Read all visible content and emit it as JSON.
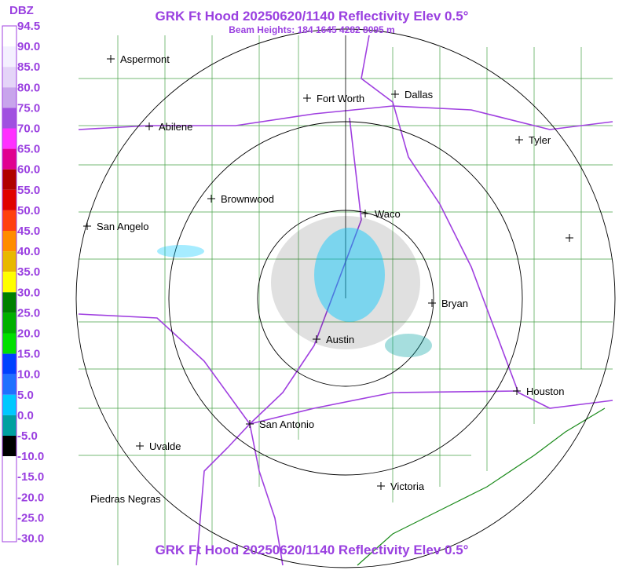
{
  "header": {
    "title": "GRK Ft Hood 20250620/1140 Reflectivity Elev 0.5°",
    "subtitle": "Beam Heights: 184 1645 4282 8095 m",
    "footer": "GRK Ft Hood 20250620/1140 Reflectivity Elev 0.5°"
  },
  "legend": {
    "unit": "DBZ",
    "labels": [
      "94.5",
      "90.0",
      "85.0",
      "80.0",
      "75.0",
      "70.0",
      "65.0",
      "60.0",
      "55.0",
      "50.0",
      "45.0",
      "40.0",
      "35.0",
      "30.0",
      "25.0",
      "20.0",
      "15.0",
      "10.0",
      "5.0",
      "0.0",
      "-5.0",
      "-10.0",
      "-15.0",
      "-20.0",
      "-25.0",
      "-30.0"
    ],
    "colors": [
      "#ffffff",
      "#f4f0ff",
      "#e4d4f8",
      "#c8a4ec",
      "#a050e0",
      "#ff30ff",
      "#e00090",
      "#b00000",
      "#e00000",
      "#ff4010",
      "#ff8c00",
      "#e8b800",
      "#ffff00",
      "#008000",
      "#00b000",
      "#00e000",
      "#0040ff",
      "#2070ff",
      "#00c8ff",
      "#00a0a0",
      "#000000",
      "#ffffff",
      "#ffffff",
      "#ffffff",
      "#ffffff"
    ]
  },
  "cities": [
    {
      "name": "Aspermont"
    },
    {
      "name": "Abilene"
    },
    {
      "name": "Fort Worth"
    },
    {
      "name": "Dallas"
    },
    {
      "name": "Tyler"
    },
    {
      "name": "Brownwood"
    },
    {
      "name": "Waco"
    },
    {
      "name": "San Angelo"
    },
    {
      "name": "Bryan"
    },
    {
      "name": "Austin"
    },
    {
      "name": "Houston"
    },
    {
      "name": "San Antonio"
    },
    {
      "name": "Uvalde"
    },
    {
      "name": "Victoria"
    },
    {
      "name": "Piedras Negras"
    }
  ]
}
